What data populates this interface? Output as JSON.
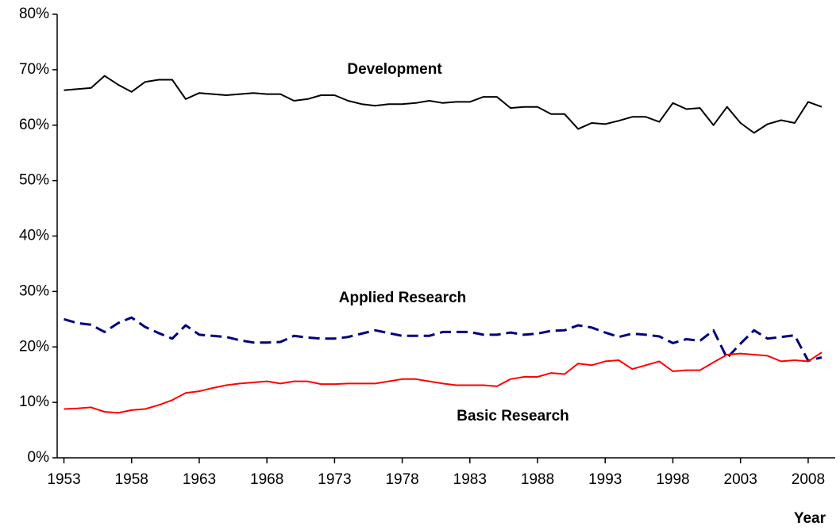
{
  "chart_data": {
    "type": "line",
    "x_label": "Year",
    "x": [
      1953,
      1954,
      1955,
      1956,
      1957,
      1958,
      1959,
      1960,
      1961,
      1962,
      1963,
      1964,
      1965,
      1966,
      1967,
      1968,
      1969,
      1970,
      1971,
      1972,
      1973,
      1974,
      1975,
      1976,
      1977,
      1978,
      1979,
      1980,
      1981,
      1982,
      1983,
      1984,
      1985,
      1986,
      1987,
      1988,
      1989,
      1990,
      1991,
      1992,
      1993,
      1994,
      1995,
      1996,
      1997,
      1998,
      1999,
      2000,
      2001,
      2002,
      2003,
      2004,
      2005,
      2006,
      2007,
      2008,
      2009
    ],
    "series": [
      {
        "name": "Development",
        "color": "#000000",
        "dash": "solid",
        "values": [
          66.3,
          66.5,
          66.7,
          68.9,
          67.3,
          66.0,
          67.8,
          68.2,
          68.2,
          64.7,
          65.8,
          65.6,
          65.4,
          65.6,
          65.8,
          65.6,
          65.6,
          64.4,
          64.7,
          65.4,
          65.4,
          64.4,
          63.8,
          63.5,
          63.8,
          63.8,
          64.0,
          64.4,
          64.0,
          64.2,
          64.2,
          65.1,
          65.1,
          63.1,
          63.3,
          63.3,
          62.0,
          62.0,
          59.3,
          60.4,
          60.2,
          60.8,
          61.5,
          61.5,
          60.6,
          64.0,
          62.9,
          63.1,
          60.0,
          63.3,
          60.4,
          58.6,
          60.2,
          60.9,
          60.4,
          64.2,
          63.3
        ]
      },
      {
        "name": "Applied Research",
        "color": "#000080",
        "dash": "dashed",
        "values": [
          25.0,
          24.3,
          24.0,
          22.7,
          24.3,
          25.3,
          23.6,
          22.5,
          21.5,
          23.9,
          22.2,
          22.0,
          21.8,
          21.2,
          20.8,
          20.8,
          20.9,
          22.0,
          21.7,
          21.5,
          21.5,
          21.8,
          22.4,
          23.0,
          22.5,
          22.0,
          22.0,
          22.0,
          22.7,
          22.7,
          22.7,
          22.2,
          22.2,
          22.6,
          22.2,
          22.4,
          22.9,
          23.0,
          23.9,
          23.5,
          22.6,
          21.8,
          22.4,
          22.2,
          21.9,
          20.7,
          21.4,
          21.1,
          23.0,
          18.0,
          20.6,
          23.0,
          21.5,
          21.8,
          22.1,
          17.5,
          18.1
        ]
      },
      {
        "name": "Basic Research",
        "color": "#ff0000",
        "dash": "solid",
        "values": [
          8.8,
          8.9,
          9.1,
          8.3,
          8.1,
          8.6,
          8.8,
          9.5,
          10.4,
          11.7,
          12.0,
          12.6,
          13.1,
          13.4,
          13.6,
          13.8,
          13.4,
          13.8,
          13.8,
          13.3,
          13.3,
          13.4,
          13.4,
          13.4,
          13.8,
          14.2,
          14.2,
          13.8,
          13.4,
          13.1,
          13.1,
          13.1,
          12.9,
          14.2,
          14.6,
          14.6,
          15.3,
          15.1,
          17.0,
          16.7,
          17.4,
          17.6,
          16.0,
          16.7,
          17.4,
          15.6,
          15.8,
          15.8,
          17.2,
          18.6,
          18.8,
          18.6,
          18.4,
          17.4,
          17.6,
          17.4,
          19.0
        ]
      }
    ],
    "xlim": [
      1952.5,
      2010
    ],
    "xticks": [
      1953,
      1958,
      1963,
      1968,
      1973,
      1978,
      1983,
      1988,
      1993,
      1998,
      2003,
      2008
    ],
    "ylim": [
      0,
      80
    ],
    "yticks": [
      {
        "value": 0,
        "label": "0%"
      },
      {
        "value": 10,
        "label": "10%"
      },
      {
        "value": 20,
        "label": "20%"
      },
      {
        "value": 30,
        "label": "30%"
      },
      {
        "value": 40,
        "label": "40%"
      },
      {
        "value": 50,
        "label": "50%"
      },
      {
        "value": 60,
        "label": "60%"
      },
      {
        "value": 70,
        "label": "70%"
      },
      {
        "value": 80,
        "label": "80%"
      }
    ],
    "grid": false
  }
}
